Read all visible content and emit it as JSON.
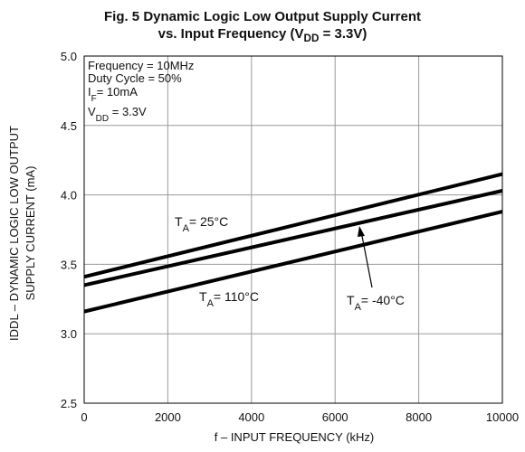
{
  "title_line1": "Fig. 5 Dynamic Logic Low Output Supply Current",
  "title_line2": "vs. Input Frequency (V_DD = 3.3V)",
  "colors": {
    "line": "#000000",
    "grid": "#9a9a9a",
    "frame": "#000000",
    "text": "#111111"
  },
  "chart_data": {
    "type": "line",
    "title": "Fig. 5 Dynamic Logic Low Output Supply Current vs. Input Frequency (VDD = 3.3V)",
    "xlabel": "f – INPUT FREQUENCY (kHz)",
    "ylabel": "IDDL – DYNAMIC LOGIC LOW OUTPUT SUPPLY CURRENT (mA)",
    "ylabel_line1": "IDDL – DYNAMIC LOGIC LOW OUTPUT",
    "ylabel_line2": "SUPPLY CURRENT (mA)",
    "xlim": [
      0,
      10000
    ],
    "ylim": [
      2.5,
      5.0
    ],
    "x_ticks": [
      "0",
      "2000",
      "4000",
      "6000",
      "8000",
      "10000"
    ],
    "y_ticks": [
      "2.5",
      "3.0",
      "3.5",
      "4.0",
      "4.5",
      "5.0"
    ],
    "grid": true,
    "conditions": [
      "Frequency = 10MHz",
      "Duty Cycle = 50%",
      "IF= 10mA",
      "VDD = 3.3V"
    ],
    "series": [
      {
        "name": "TA = 25°C",
        "x": [
          0,
          10000
        ],
        "y": [
          3.41,
          4.15
        ]
      },
      {
        "name": "TA = -40°C",
        "x": [
          0,
          10000
        ],
        "y": [
          3.35,
          4.03
        ]
      },
      {
        "name": "TA = 110°C",
        "x": [
          0,
          10000
        ],
        "y": [
          3.16,
          3.88
        ]
      }
    ],
    "annotations": [
      "TA = 25°C",
      "TA = 110°C",
      "TA = -40°C"
    ]
  }
}
